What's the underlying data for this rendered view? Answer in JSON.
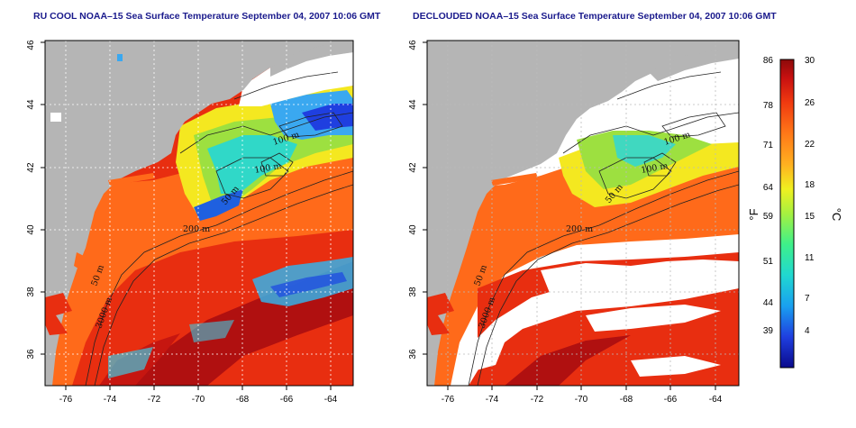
{
  "maps": [
    {
      "id": "raw",
      "title": "RU COOL NOAA–15 Sea Surface Temperature September 04, 2007 10:06 GMT"
    },
    {
      "id": "declouded",
      "title": "DECLOUDED NOAA–15 Sea Surface Temperature September 04, 2007 10:06 GMT"
    }
  ],
  "axes": {
    "lon_ticks": [
      "-76",
      "-74",
      "-72",
      "-70",
      "-68",
      "-66",
      "-64"
    ],
    "lat_ticks": [
      "36",
      "38",
      "40",
      "42",
      "44",
      "46"
    ],
    "lon_range": [
      -77,
      -63
    ],
    "lat_range": [
      35,
      46
    ]
  },
  "contours": [
    "100 m",
    "100 m",
    "50 m",
    "200 m",
    "50 m",
    "3000 m"
  ],
  "colorbar": {
    "fahrenheit_ticks": [
      "86",
      "78",
      "71",
      "64",
      "59",
      "51",
      "44",
      "39"
    ],
    "celsius_ticks": [
      "30",
      "26",
      "22",
      "18",
      "15",
      "11",
      "7",
      "4"
    ],
    "fahrenheit_unit": "°F",
    "celsius_unit": "°C",
    "range_c": [
      0,
      30
    ],
    "colors": [
      "#0a0a8c",
      "#1f3fe0",
      "#19a0f0",
      "#20d8d0",
      "#3ef08a",
      "#a6f040",
      "#f0f020",
      "#ffb020",
      "#ff7818",
      "#f03a10",
      "#c81010",
      "#8c0a0a"
    ]
  },
  "colors": {
    "land": "#b5b5b5",
    "cloud": "#ffffff",
    "title": "#1a1a8c"
  }
}
